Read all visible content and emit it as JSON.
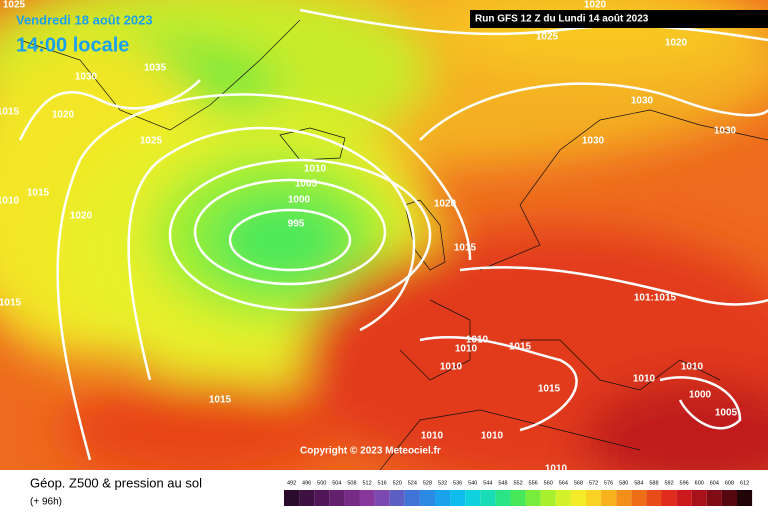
{
  "header": {
    "date": "Vendredi 18 août 2023",
    "time": "14:00 locale",
    "run": "Run GFS 12 Z du Lundi 14 août 2023"
  },
  "copyright": "Copyright © 2023 Meteociel.fr",
  "footer": {
    "title": "Géop. Z500 & pression au sol",
    "lead": "(+ 96h)"
  },
  "isobar_labels": [
    "1025",
    "1025",
    "1020",
    "1020",
    "1030",
    "1035",
    "1020",
    "1015",
    "1025",
    "1030",
    "1030",
    "1030",
    "1010",
    "1005",
    "1000",
    "995",
    "1015",
    "1010",
    "1020",
    "1020",
    "1015",
    "1015",
    "101:1015",
    "1010",
    "1010",
    "1015",
    "1010",
    "1015",
    "1010",
    "1010",
    "1000",
    "1005",
    "1015",
    "1010",
    "1010",
    "1010"
  ],
  "legend": [
    {
      "value": 492,
      "color": "#2b0b2b"
    },
    {
      "value": 496,
      "color": "#3d1041"
    },
    {
      "value": 500,
      "color": "#501657"
    },
    {
      "value": 504,
      "color": "#62206d"
    },
    {
      "value": 508,
      "color": "#752b83"
    },
    {
      "value": 512,
      "color": "#87379a"
    },
    {
      "value": 516,
      "color": "#7a4ab0"
    },
    {
      "value": 520,
      "color": "#5d5fc4"
    },
    {
      "value": 524,
      "color": "#3f73d6"
    },
    {
      "value": 528,
      "color": "#2a8ae4"
    },
    {
      "value": 532,
      "color": "#1aa2ec"
    },
    {
      "value": 536,
      "color": "#10bcee"
    },
    {
      "value": 540,
      "color": "#10d2df"
    },
    {
      "value": 544,
      "color": "#18dcb6"
    },
    {
      "value": 548,
      "color": "#2ae486"
    },
    {
      "value": 552,
      "color": "#46e85a"
    },
    {
      "value": 556,
      "color": "#78ec3a"
    },
    {
      "value": 560,
      "color": "#a8f02e"
    },
    {
      "value": 564,
      "color": "#d4f22a"
    },
    {
      "value": 568,
      "color": "#f4ec28"
    },
    {
      "value": 572,
      "color": "#fad223"
    },
    {
      "value": 576,
      "color": "#f8b21e"
    },
    {
      "value": 580,
      "color": "#f4901a"
    },
    {
      "value": 584,
      "color": "#ee6e18"
    },
    {
      "value": 588,
      "color": "#e84c18"
    },
    {
      "value": 592,
      "color": "#e02c1c"
    },
    {
      "value": 596,
      "color": "#cc1a1c"
    },
    {
      "value": 600,
      "color": "#a8121a"
    },
    {
      "value": 604,
      "color": "#800c16"
    },
    {
      "value": 608,
      "color": "#560810"
    },
    {
      "value": 612,
      "color": "#200408"
    }
  ]
}
